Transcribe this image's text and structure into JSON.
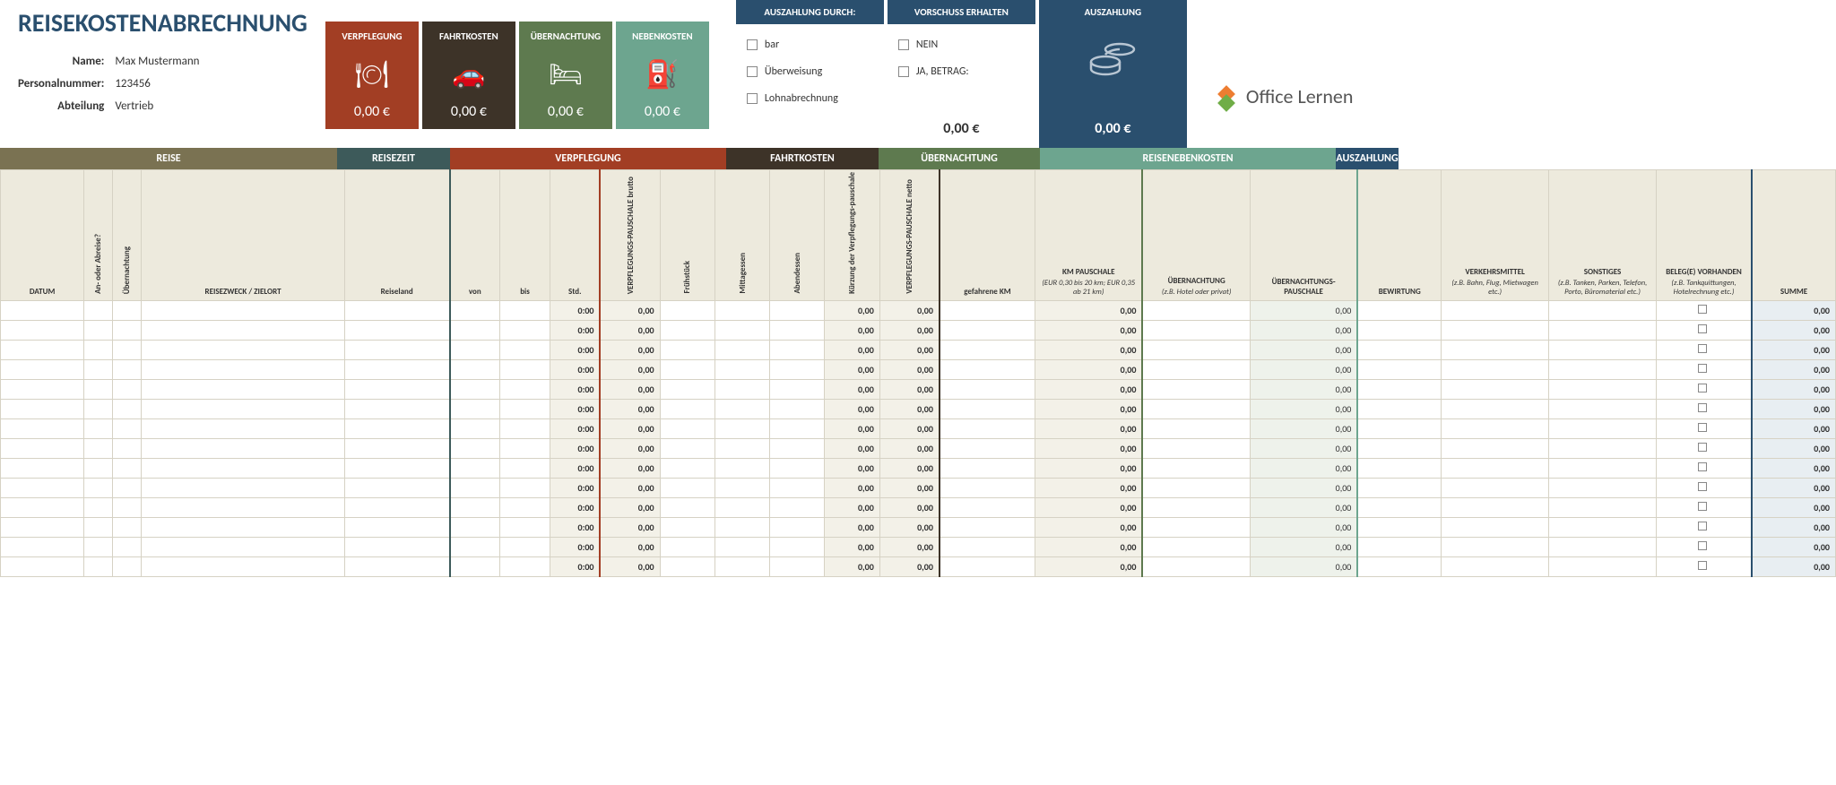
{
  "header": {
    "title": "REISEKOSTENABRECHNUNG",
    "fields": {
      "name_label": "Name:",
      "name": "Max Mustermann",
      "personalnr_label": "Personalnummer:",
      "personalnr": "123456",
      "abteilung_label": "Abteilung",
      "abteilung": "Vertrieb"
    },
    "cards": {
      "verpf": {
        "label": "VERPFLEGUNG",
        "value": "0,00 €",
        "color": "#a23e24"
      },
      "fahrt": {
        "label": "FAHRTKOSTEN",
        "value": "0,00 €",
        "color": "#3d3328"
      },
      "uebern": {
        "label": "ÜBERNACHTUNG",
        "value": "0,00 €",
        "color": "#5e7a4f"
      },
      "neben": {
        "label": "NEBENKOSTEN",
        "value": "0,00 €",
        "color": "#6da58f"
      }
    },
    "box_auszahlung_durch": {
      "title": "AUSZAHLUNG DURCH:",
      "opt1": "bar",
      "opt2": "Überweisung",
      "opt3": "Lohnabrechnung"
    },
    "box_vorschuss": {
      "title": "VORSCHUSS ERHALTEN",
      "opt1": "NEIN",
      "opt2": "JA, BETRAG:",
      "value": "0,00 €"
    },
    "box_auszahlung": {
      "title": "AUSZAHLUNG",
      "value": "0,00 €"
    },
    "logo": "Office Lernen"
  },
  "bands": {
    "reise": "REISE",
    "rzeit": "REISEZEIT",
    "verpf": "VERPFLEGUNG",
    "fahrt": "FAHRTKOSTEN",
    "uebern": "ÜBERNACHTUNG",
    "neben": "REISENEBENKOSTEN",
    "ausz": "AUSZAHLUNG"
  },
  "columns": {
    "datum": "DATUM",
    "abreise": "An- oder Abreise?",
    "uebernacht": "Übernachtung",
    "zweck": "REISEZWECK / ZIELORT",
    "land": "Reiseland",
    "von": "von",
    "bis": "bis",
    "std": "Std.",
    "pausch_brutto": "VERPFLEGUNGS-PAUSCHALE brutto",
    "fruehst": "Frühstück",
    "mittag": "Mittagessen",
    "abend": "Abendessen",
    "kuerzung": "Kürzung der Verpflegungs-pauschale",
    "pausch_netto": "VERPFLEGUNGS-PAUSCHALE netto",
    "km": "gefahrene KM",
    "km_pausch": "KM PAUSCHALE",
    "km_pausch_sub": "(EUR 0,30 bis 20 km; EUR 0,35 ab 21 km)",
    "hotel": "ÜBERNACHTUNG",
    "hotel_sub": "(z.B. Hotel oder privat)",
    "hotel_pausch": "ÜBERNACHTUNGS-PAUSCHALE",
    "bewirt": "BEWIRTUNG",
    "verkehr": "VERKEHRSMITTEL",
    "verkehr_sub": "(z.B. Bahn, Flug, Mietwagen etc.)",
    "sonst": "SONSTIGES",
    "sonst_sub": "(z.B. Tanken, Parken, Telefon, Porto, Büromaterial etc.)",
    "beleg": "BELEG(E) VORHANDEN",
    "beleg_sub": "(z.B. Tankquittungen, Hotelrechnung etc.)",
    "summe": "SUMME"
  },
  "col_widths": {
    "datum": 70,
    "abreise": 24,
    "uebernacht": 24,
    "zweck": 170,
    "land": 88,
    "von": 42,
    "bis": 42,
    "std": 42,
    "pausch_brutto": 50,
    "fruehst": 46,
    "mittag": 46,
    "abend": 46,
    "kuerzung": 46,
    "pausch_netto": 50,
    "km": 80,
    "km_pausch": 90,
    "hotel": 90,
    "hotel_pausch": 90,
    "bewirt": 70,
    "verkehr": 90,
    "sonst": 90,
    "beleg": 80,
    "summe": 70
  },
  "row_defaults": {
    "std": "0:00",
    "pausch_brutto": "0,00",
    "kuerzung": "0,00",
    "pausch_netto": "0,00",
    "km_pausch": "0,00",
    "hotel_pausch": "0,00",
    "summe": "0,00"
  },
  "row_count": 14,
  "colors": {
    "title": "#2a4f6e",
    "band_reise": "#7a7252",
    "band_rzeit": "#3d5a5a",
    "verpf": "#a23e24",
    "fahrt": "#3d3328",
    "uebern": "#5e7a4f",
    "neben": "#6da58f",
    "ausz": "#2a4f6e",
    "th_bg": "#eceadf",
    "calc_bg": "#f3f1e8",
    "uebern_bg": "#eef2eb",
    "sum_bg": "#e8eef2",
    "border": "#d6d2c4"
  }
}
